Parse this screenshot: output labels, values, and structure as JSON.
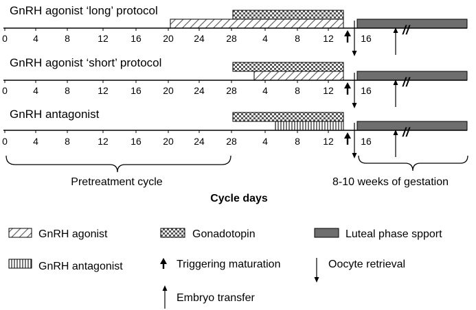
{
  "protocols": [
    {
      "title": "GnRH agonist ‘long’ protocol",
      "day_labels": [
        "0",
        "4",
        "8",
        "12",
        "16",
        "20",
        "24",
        "28",
        "4",
        "8",
        "12",
        "16"
      ],
      "bars": {
        "gnrh_agonist": [
          "pretreatment day 20",
          "treatment day 13"
        ],
        "gonadotropin": [
          "treatment day 0",
          "treatment day 13"
        ],
        "luteal_support": [
          "treatment day 15",
          "8-10 weeks of gestation"
        ]
      }
    },
    {
      "title": "GnRH agonist ‘short’ protocol",
      "day_labels": [
        "0",
        "4",
        "8",
        "12",
        "16",
        "20",
        "24",
        "28",
        "4",
        "8",
        "12",
        "16"
      ],
      "bars": {
        "gnrh_agonist": [
          "treatment day 2",
          "treatment day 13"
        ],
        "gonadotropin": [
          "treatment day 0",
          "treatment day 13"
        ],
        "luteal_support": [
          "treatment day 15",
          "8-10 weeks of gestation"
        ]
      }
    },
    {
      "title": "GnRH antagonist",
      "day_labels": [
        "0",
        "4",
        "8",
        "12",
        "16",
        "20",
        "24",
        "28",
        "4",
        "8",
        "12",
        "16"
      ],
      "bars": {
        "gnrh_antagonist": [
          "treatment day 5",
          "treatment day 13"
        ],
        "gonadotropin": [
          "treatment day 0",
          "treatment day 13"
        ],
        "luteal_support": [
          "treatment day 15",
          "8-10 weeks of gestation"
        ]
      }
    }
  ],
  "brace_labels": {
    "pretreatment": "Pretreatment cycle",
    "gestation": "8-10 weeks of gestation"
  },
  "axis_title": "Cycle days",
  "break_mark": "//",
  "legend": {
    "gnrh_agonist": "GnRH agonist",
    "gonadotropin": "Gonadotopin",
    "luteal_support": "Luteal phase spport",
    "gnrh_antagonist": "GnRH antagonist",
    "triggering": "Triggering maturation",
    "oocyte_retrieval": "Oocyte retrieval",
    "embryo_transfer": "Embryo transfer"
  },
  "colors": {
    "line": "#000000",
    "luteal_fill": "#6e6e6e",
    "hatch": "#555555"
  }
}
